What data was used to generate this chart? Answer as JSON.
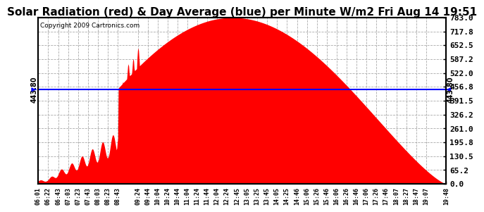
{
  "title": "Solar Radiation (red) & Day Average (blue) per Minute W/m2 Fri Aug 14 19:51",
  "copyright": "Copyright 2009 Cartronics.com",
  "avg_value": 443.8,
  "y_max": 783.0,
  "y_min": 0.0,
  "y_ticks": [
    0.0,
    65.2,
    130.5,
    195.8,
    261.0,
    326.2,
    391.5,
    456.8,
    522.0,
    587.2,
    652.5,
    717.8,
    783.0
  ],
  "x_labels": [
    "06:01",
    "06:22",
    "06:43",
    "07:03",
    "07:23",
    "07:43",
    "08:03",
    "08:23",
    "08:43",
    "09:24",
    "09:44",
    "10:04",
    "10:24",
    "10:44",
    "11:04",
    "11:24",
    "11:44",
    "12:04",
    "12:24",
    "12:45",
    "13:05",
    "13:25",
    "13:45",
    "14:05",
    "14:25",
    "14:46",
    "15:06",
    "15:26",
    "15:46",
    "16:06",
    "16:26",
    "16:46",
    "17:06",
    "17:26",
    "17:46",
    "18:07",
    "18:27",
    "18:47",
    "19:07",
    "19:48"
  ],
  "bg_color": "#ffffff",
  "fill_color": "#ff0000",
  "line_color": "#0000ff",
  "grid_color": "#aaaaaa",
  "title_fontsize": 11,
  "axis_fontsize": 8
}
